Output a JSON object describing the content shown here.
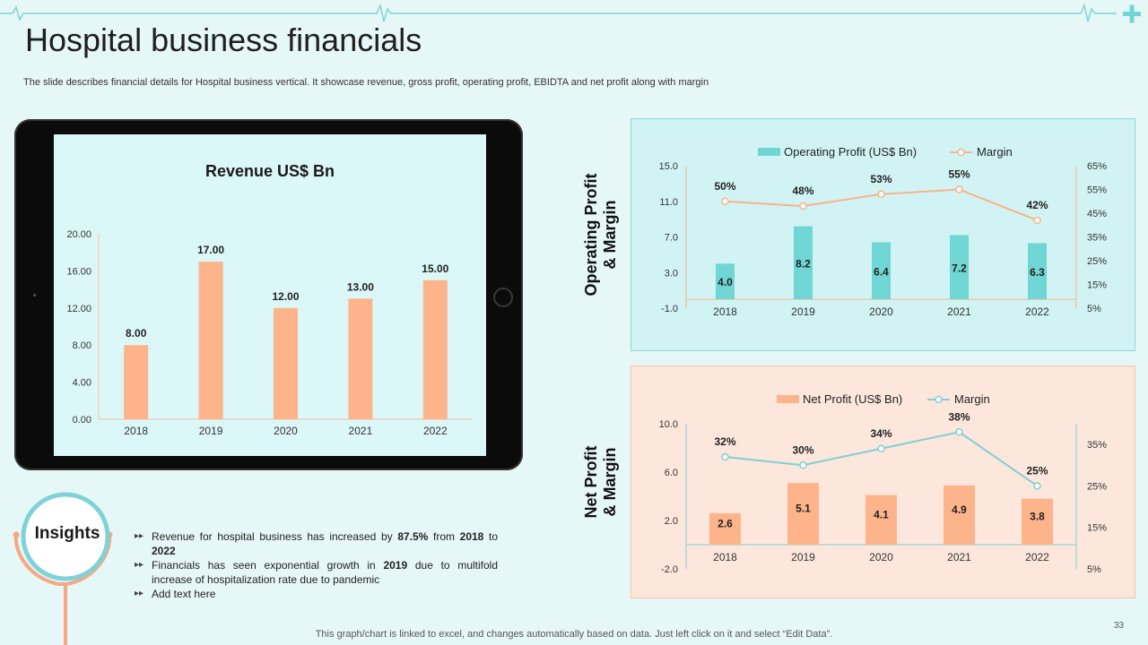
{
  "title": "Hospital business financials",
  "subtitle": "The slide describes financial details for Hospital business vertical. It showcase revenue, gross profit, operating profit, EBIDTA and net profit along with margin",
  "colors": {
    "background": "#e6f7f7",
    "teal": "#6fd6d3",
    "teal_line": "#7fcfd4",
    "peach": "#fdb48a",
    "peach_line": "#f7b38d"
  },
  "insights": {
    "label": "Insights",
    "items": [
      {
        "pre": "Revenue  for hospital business has increased by ",
        "b1": "87.5%",
        "mid": " from ",
        "b2": "2018",
        "post": " to ",
        "b3": "2022",
        "end": ""
      },
      {
        "pre": "Financials has seen exponential growth  in ",
        "b1": "2019",
        "mid": " due to multifold increase of hospitalization rate due to pandemic",
        "b2": "",
        "post": "",
        "b3": "",
        "end": ""
      },
      {
        "pre": "Add text here",
        "b1": "",
        "mid": "",
        "b2": "",
        "post": "",
        "b3": "",
        "end": ""
      }
    ]
  },
  "footer_note": "This graph/chart is linked to excel,  and changes automatically based on data. Just left click on it and select “Edit Data”.",
  "page_number": "33",
  "op_label": [
    "Operating Profit",
    "& Margin"
  ],
  "np_label": [
    "Net Profit",
    "& Margin"
  ],
  "chart_data": [
    {
      "id": "revenue",
      "type": "bar",
      "title": "Revenue US$ Bn",
      "categories": [
        "2018",
        "2019",
        "2020",
        "2021",
        "2022"
      ],
      "values": [
        8,
        17,
        12,
        13,
        15
      ],
      "data_labels": [
        "8.00",
        "17.00",
        "12.00",
        "13.00",
        "15.00"
      ],
      "ylim": [
        0,
        20
      ],
      "yticks": [
        "0.00",
        "4.00",
        "8.00",
        "12.00",
        "16.00",
        "20.00"
      ],
      "ytick_values": [
        0,
        4,
        8,
        12,
        16,
        20
      ],
      "xlabel": "",
      "ylabel": ""
    },
    {
      "id": "operating",
      "type": "bar+line",
      "title": "",
      "categories": [
        "2018",
        "2019",
        "2020",
        "2021",
        "2022"
      ],
      "series": [
        {
          "name": "Operating Profit (US$ Bn)",
          "kind": "bar",
          "axis": "left",
          "values": [
            4.0,
            8.2,
            6.4,
            7.2,
            6.3
          ],
          "labels": [
            "4.0",
            "8.2",
            "6.4",
            "7.2",
            "6.3"
          ]
        },
        {
          "name": "Margin",
          "kind": "line",
          "axis": "right",
          "values": [
            50,
            48,
            53,
            55,
            42
          ],
          "labels": [
            "50%",
            "48%",
            "53%",
            "55%",
            "42%"
          ]
        }
      ],
      "ylim": [
        -1,
        15
      ],
      "yticks": [
        "-1.0",
        "3.0",
        "7.0",
        "11.0",
        "15.0"
      ],
      "ytick_values": [
        -1,
        3,
        7,
        11,
        15
      ],
      "y2lim": [
        5,
        65
      ],
      "y2ticks": [
        "5%",
        "15%",
        "25%",
        "35%",
        "45%",
        "55%",
        "65%"
      ],
      "y2tick_values": [
        5,
        15,
        25,
        35,
        45,
        55,
        65
      ],
      "legend": "top"
    },
    {
      "id": "netprofit",
      "type": "bar+line",
      "title": "",
      "categories": [
        "2018",
        "2019",
        "2020",
        "2021",
        "2022"
      ],
      "series": [
        {
          "name": "Net Profit (US$ Bn)",
          "kind": "bar",
          "axis": "left",
          "values": [
            2.6,
            5.1,
            4.1,
            4.9,
            3.8
          ],
          "labels": [
            "2.6",
            "5.1",
            "4.1",
            "4.9",
            "3.8"
          ]
        },
        {
          "name": "Margin",
          "kind": "line",
          "axis": "right",
          "values": [
            32,
            30,
            34,
            38,
            25
          ],
          "labels": [
            "32%",
            "30%",
            "34%",
            "38%",
            "25%"
          ]
        }
      ],
      "ylim": [
        -2,
        10
      ],
      "yticks": [
        "-2.0",
        "2.0",
        "6.0",
        "10.0"
      ],
      "ytick_values": [
        -2,
        2,
        6,
        10
      ],
      "y2lim": [
        5,
        40
      ],
      "y2ticks": [
        "5%",
        "15%",
        "25%",
        "35%"
      ],
      "y2tick_values": [
        5,
        15,
        25,
        35
      ],
      "legend": "top"
    }
  ]
}
